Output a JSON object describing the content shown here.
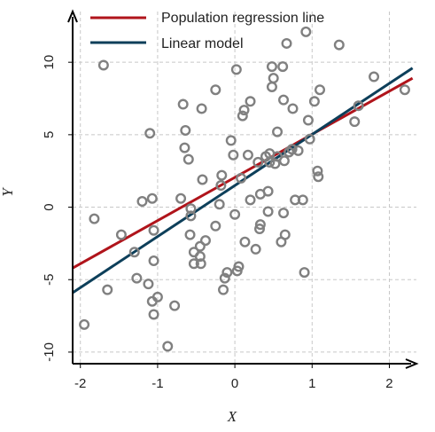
{
  "chart_data": {
    "type": "scatter",
    "title": "",
    "xlabel": "X",
    "ylabel": "Y",
    "xlim": [
      -2.1,
      2.35
    ],
    "ylim": [
      -10.8,
      13.5
    ],
    "xticks": [
      -2,
      -1,
      0,
      1,
      2
    ],
    "yticks": [
      -10,
      -5,
      0,
      5,
      10
    ],
    "xtick_labels": [
      "-2",
      "-1",
      "0",
      "1",
      "2"
    ],
    "ytick_labels": [
      "-10",
      "-5",
      "0",
      "5",
      "10"
    ],
    "grid": true,
    "grid_style": "dashed",
    "legend_position": "top-left",
    "colors": {
      "points": "#808080",
      "population_line": "#b0141b",
      "model_line": "#0d3f5a",
      "grid": "#c8c8c8",
      "axes": "#000000"
    },
    "series": [
      {
        "name": "Population regression line",
        "type": "line",
        "x": [
          -2.1,
          2.3
        ],
        "y": [
          -4.2,
          8.9
        ]
      },
      {
        "name": "Linear model",
        "type": "line",
        "x": [
          -2.1,
          2.3
        ],
        "y": [
          -5.9,
          9.6
        ]
      },
      {
        "type": "scatter",
        "points": [
          [
            -1.95,
            -8.1
          ],
          [
            -1.82,
            -0.8
          ],
          [
            -1.7,
            9.8
          ],
          [
            -1.65,
            -5.7
          ],
          [
            -1.47,
            -1.9
          ],
          [
            -1.3,
            -3.1
          ],
          [
            -1.27,
            -4.9
          ],
          [
            -1.2,
            0.4
          ],
          [
            -1.12,
            -5.3
          ],
          [
            -1.1,
            5.1
          ],
          [
            -1.07,
            -6.5
          ],
          [
            -1.07,
            0.6
          ],
          [
            -1.05,
            -7.4
          ],
          [
            -1.05,
            -1.6
          ],
          [
            -1.05,
            -3.7
          ],
          [
            -1.0,
            -6.2
          ],
          [
            -0.87,
            -9.6
          ],
          [
            -0.78,
            -6.8
          ],
          [
            -0.7,
            0.6
          ],
          [
            -0.67,
            7.1
          ],
          [
            -0.65,
            4.1
          ],
          [
            -0.64,
            5.3
          ],
          [
            -0.6,
            3.3
          ],
          [
            -0.58,
            -1.9
          ],
          [
            -0.57,
            -0.1
          ],
          [
            -0.57,
            -0.6
          ],
          [
            -0.53,
            -3.1
          ],
          [
            -0.53,
            -3.9
          ],
          [
            -0.45,
            -2.7
          ],
          [
            -0.45,
            -3.4
          ],
          [
            -0.44,
            -3.9
          ],
          [
            -0.43,
            6.8
          ],
          [
            -0.42,
            1.9
          ],
          [
            -0.38,
            -2.3
          ],
          [
            -0.25,
            8.1
          ],
          [
            -0.25,
            -1.3
          ],
          [
            -0.2,
            0.2
          ],
          [
            -0.18,
            1.5
          ],
          [
            -0.17,
            2.2
          ],
          [
            -0.15,
            -5.7
          ],
          [
            -0.13,
            -4.9
          ],
          [
            -0.1,
            -4.5
          ],
          [
            -0.05,
            4.6
          ],
          [
            -0.02,
            3.6
          ],
          [
            0.0,
            -0.5
          ],
          [
            0.02,
            9.5
          ],
          [
            0.03,
            -4.4
          ],
          [
            0.05,
            -4.1
          ],
          [
            0.08,
            2.0
          ],
          [
            0.1,
            6.3
          ],
          [
            0.12,
            6.7
          ],
          [
            0.13,
            -2.4
          ],
          [
            0.17,
            3.6
          ],
          [
            0.2,
            0.5
          ],
          [
            0.2,
            7.3
          ],
          [
            0.27,
            -2.9
          ],
          [
            0.3,
            3.1
          ],
          [
            0.32,
            -1.5
          ],
          [
            0.33,
            -1.2
          ],
          [
            0.33,
            0.9
          ],
          [
            0.4,
            3.5
          ],
          [
            0.43,
            -0.3
          ],
          [
            0.43,
            1.1
          ],
          [
            0.45,
            3.7
          ],
          [
            0.45,
            3.1
          ],
          [
            0.48,
            8.3
          ],
          [
            0.48,
            9.7
          ],
          [
            0.5,
            8.9
          ],
          [
            0.52,
            3.0
          ],
          [
            0.55,
            5.2
          ],
          [
            0.55,
            3.5
          ],
          [
            0.6,
            -2.4
          ],
          [
            0.62,
            9.7
          ],
          [
            0.63,
            7.4
          ],
          [
            0.63,
            -0.4
          ],
          [
            0.64,
            3.2
          ],
          [
            0.65,
            -1.9
          ],
          [
            0.67,
            11.3
          ],
          [
            0.7,
            3.8
          ],
          [
            0.74,
            4.0
          ],
          [
            0.75,
            6.8
          ],
          [
            0.78,
            0.5
          ],
          [
            0.82,
            3.9
          ],
          [
            0.88,
            0.5
          ],
          [
            0.9,
            -4.5
          ],
          [
            0.92,
            12.1
          ],
          [
            0.95,
            6.0
          ],
          [
            0.97,
            4.7
          ],
          [
            1.03,
            7.3
          ],
          [
            1.07,
            2.5
          ],
          [
            1.08,
            2.1
          ],
          [
            1.1,
            8.1
          ],
          [
            1.35,
            11.2
          ],
          [
            1.55,
            5.9
          ],
          [
            1.6,
            7.0
          ],
          [
            1.8,
            9.0
          ],
          [
            2.2,
            8.1
          ]
        ]
      }
    ]
  }
}
